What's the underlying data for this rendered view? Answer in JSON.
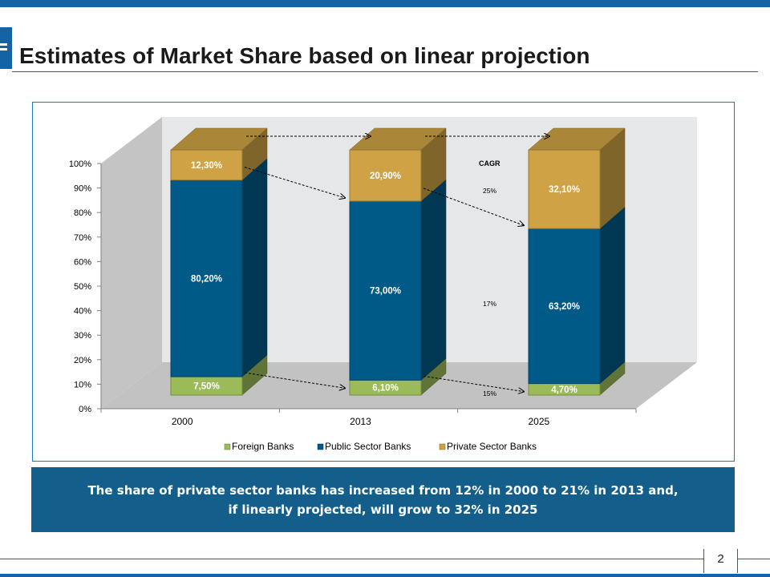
{
  "slide": {
    "title": "Estimates of Market Share based on linear projection",
    "callout_line1": "The share of private sector banks has increased from 12% in 2000 to 21% in 2013 and,",
    "callout_line2": "if  linearly projected, will grow to 32% in 2025",
    "page_number": "2"
  },
  "colors": {
    "brand_blue": "#1463a5",
    "callout_bg": "#135e8a",
    "foreign": "#9bbb59",
    "public": "#005a87",
    "private": "#cfa345"
  },
  "chart_data": {
    "type": "bar",
    "stacked": true,
    "three_d": true,
    "categories": [
      "2000",
      "2013",
      "2025"
    ],
    "series": [
      {
        "name": "Foreign Banks",
        "values": [
          7.5,
          6.1,
          4.7
        ],
        "labels": [
          "7,50%",
          "6,10%",
          "4,70%"
        ]
      },
      {
        "name": "Public Sector Banks",
        "values": [
          80.2,
          73.0,
          63.2
        ],
        "labels": [
          "80,20%",
          "73,00%",
          "63,20%"
        ]
      },
      {
        "name": "Private Sector Banks",
        "values": [
          12.3,
          20.9,
          32.1
        ],
        "labels": [
          "12,30%",
          "20,90%",
          "32,10%"
        ]
      }
    ],
    "y_ticks": [
      "0%",
      "10%",
      "20%",
      "30%",
      "40%",
      "50%",
      "60%",
      "70%",
      "80%",
      "90%",
      "100%"
    ],
    "ylim": [
      0,
      100
    ],
    "legend_position": "bottom",
    "annotations": {
      "cagr_title": "CAGR",
      "cagr_private": "25%",
      "cagr_public": "17%",
      "cagr_foreign": "15%"
    }
  }
}
